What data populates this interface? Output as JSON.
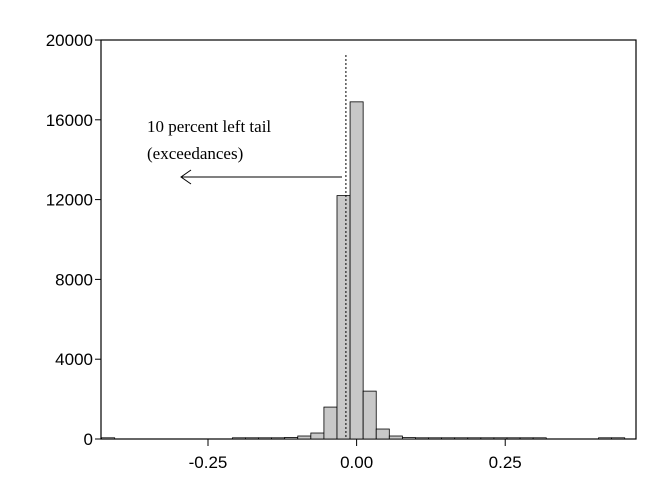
{
  "chart_data": {
    "type": "bar",
    "title": "",
    "xlabel": "",
    "ylabel": "",
    "xlim": [
      -0.43,
      0.47
    ],
    "ylim": [
      0,
      20000
    ],
    "bin_width": 0.022,
    "bins": [
      {
        "x": -0.418,
        "count": 20
      },
      {
        "x": -0.198,
        "count": 15
      },
      {
        "x": -0.176,
        "count": 20
      },
      {
        "x": -0.154,
        "count": 25
      },
      {
        "x": -0.132,
        "count": 40
      },
      {
        "x": -0.11,
        "count": 80
      },
      {
        "x": -0.088,
        "count": 150
      },
      {
        "x": -0.066,
        "count": 300
      },
      {
        "x": -0.044,
        "count": 1600
      },
      {
        "x": -0.022,
        "count": 12200
      },
      {
        "x": 0.0,
        "count": 16900
      },
      {
        "x": 0.022,
        "count": 2400
      },
      {
        "x": 0.044,
        "count": 500
      },
      {
        "x": 0.066,
        "count": 150
      },
      {
        "x": 0.088,
        "count": 70
      },
      {
        "x": 0.11,
        "count": 40
      },
      {
        "x": 0.132,
        "count": 30
      },
      {
        "x": 0.154,
        "count": 25
      },
      {
        "x": 0.176,
        "count": 20
      },
      {
        "x": 0.198,
        "count": 20
      },
      {
        "x": 0.22,
        "count": 15
      },
      {
        "x": 0.242,
        "count": 15
      },
      {
        "x": 0.264,
        "count": 15
      },
      {
        "x": 0.286,
        "count": 10
      },
      {
        "x": 0.308,
        "count": 10
      },
      {
        "x": 0.418,
        "count": 15
      },
      {
        "x": 0.44,
        "count": 15
      }
    ],
    "x_ticks": [
      {
        "value": -0.25,
        "label": "-0.25"
      },
      {
        "value": 0.0,
        "label": "0.00"
      },
      {
        "value": 0.25,
        "label": "0.25"
      }
    ],
    "y_ticks": [
      {
        "value": 0,
        "label": "0"
      },
      {
        "value": 4000,
        "label": "4000"
      },
      {
        "value": 8000,
        "label": "8000"
      },
      {
        "value": 12000,
        "label": "12000"
      },
      {
        "value": 16000,
        "label": "16000"
      },
      {
        "value": 20000,
        "label": "20000"
      }
    ],
    "threshold": -0.018,
    "annotation": {
      "line1": "10 percent left tail",
      "line2": "(exceedances)"
    },
    "colors": {
      "bar_fill": "#c8c8c8",
      "bar_stroke": "#000000"
    }
  }
}
